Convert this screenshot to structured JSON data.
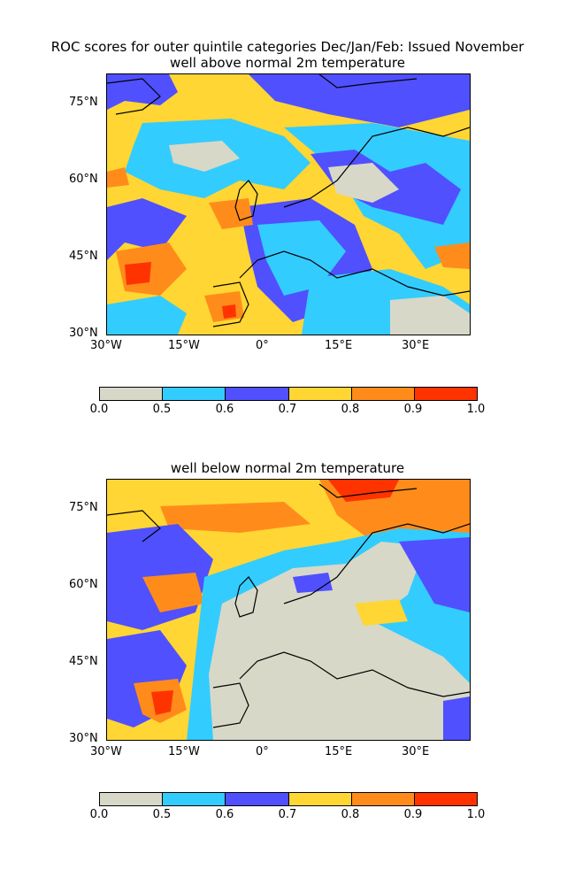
{
  "figure": {
    "title_line1": "ROC scores for outer quintile categories Dec/Jan/Feb: Issued November",
    "panels": [
      {
        "subtitle": "well above normal 2m temperature"
      },
      {
        "subtitle": "well below normal 2m temperature"
      }
    ]
  },
  "axes": {
    "lat_labels": [
      "75°N",
      "60°N",
      "45°N",
      "30°N"
    ],
    "lon_labels": [
      "30°W",
      "15°W",
      "0°",
      "15°E",
      "30°E"
    ]
  },
  "colorbar": {
    "labels": [
      "0.0",
      "0.5",
      "0.6",
      "0.7",
      "0.8",
      "0.9",
      "1.0"
    ],
    "colors": [
      "#d8d8c8",
      "#33ccff",
      "#5050ff",
      "#ffd633",
      "#ff8c1a",
      "#ff3300"
    ]
  }
}
